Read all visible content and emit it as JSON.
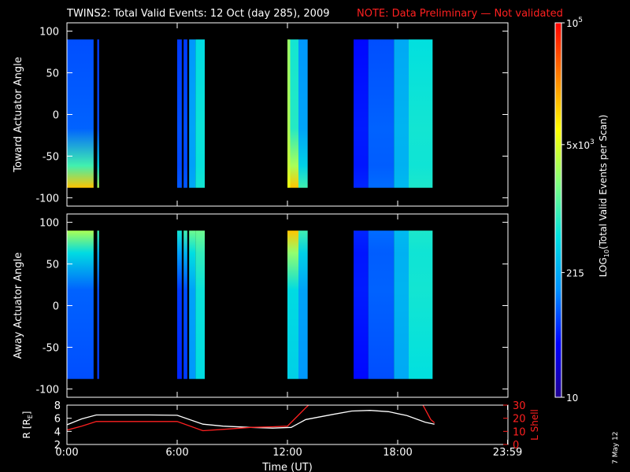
{
  "header": {
    "title": "TWINS2: Total Valid Events: 12 Oct (day 285), 2009",
    "note": "NOTE: Data Preliminary — Not validated"
  },
  "footer": {
    "date_stamp": "7 May 12"
  },
  "chart_data": [
    {
      "type": "heatmap",
      "ylabel": "Toward Actuator Angle",
      "ylim": [
        -110,
        110
      ],
      "yticks": [
        "100",
        "50",
        "0",
        "-50",
        "-100"
      ],
      "ytick_values": [
        100,
        50,
        0,
        -50,
        -100
      ],
      "data_yrange": [
        -88,
        90
      ],
      "xlim": [
        0,
        24
      ],
      "color_scale": "log",
      "value_range": [
        10,
        100000
      ],
      "segments": [
        {
          "t0": 0.0,
          "t1": 1.45,
          "low": 0.22,
          "high": 0.78,
          "bottom_edge": "high"
        },
        {
          "t0": 1.65,
          "t1": 1.75,
          "low": 0.2,
          "high": 0.62,
          "bottom_edge": "high"
        },
        {
          "t0": 6.0,
          "t1": 6.25,
          "low": 0.2,
          "high": 0.28,
          "bottom_edge": "low"
        },
        {
          "t0": 6.35,
          "t1": 6.55,
          "low": 0.2,
          "high": 0.28,
          "bottom_edge": "low"
        },
        {
          "t0": 6.65,
          "t1": 7.0,
          "low": 0.3,
          "high": 0.38,
          "bottom_edge": "low"
        },
        {
          "t0": 7.0,
          "t1": 7.5,
          "low": 0.42,
          "high": 0.48,
          "bottom_edge": "low"
        },
        {
          "t0": 12.0,
          "t1": 12.15,
          "low": 0.6,
          "high": 0.7,
          "bottom_edge": "high"
        },
        {
          "t0": 12.15,
          "t1": 12.6,
          "low": 0.45,
          "high": 0.78,
          "bottom_edge": "high"
        },
        {
          "t0": 12.6,
          "t1": 13.1,
          "low": 0.3,
          "high": 0.5,
          "bottom_edge": "high"
        },
        {
          "t0": 15.6,
          "t1": 16.4,
          "low": 0.15,
          "high": 0.25,
          "bottom_edge": "low"
        },
        {
          "t0": 16.4,
          "t1": 17.8,
          "low": 0.22,
          "high": 0.32,
          "bottom_edge": "low"
        },
        {
          "t0": 17.8,
          "t1": 18.6,
          "low": 0.33,
          "high": 0.42,
          "bottom_edge": "low"
        },
        {
          "t0": 18.6,
          "t1": 19.9,
          "low": 0.43,
          "high": 0.58,
          "bottom_edge": "low"
        }
      ]
    },
    {
      "type": "heatmap",
      "ylabel": "Away Actuator Angle",
      "ylim": [
        -110,
        110
      ],
      "yticks": [
        "100",
        "50",
        "0",
        "-50",
        "-100"
      ],
      "ytick_values": [
        100,
        50,
        0,
        -50,
        -100
      ],
      "data_yrange": [
        -88,
        90
      ],
      "xlim": [
        0,
        24
      ],
      "color_scale": "log",
      "value_range": [
        10,
        100000
      ],
      "segments": [
        {
          "t0": 0.0,
          "t1": 1.45,
          "low": 0.22,
          "high": 0.62,
          "top_edge": "high"
        },
        {
          "t0": 1.65,
          "t1": 1.75,
          "low": 0.2,
          "high": 0.5,
          "top_edge": "high"
        },
        {
          "t0": 6.0,
          "t1": 6.25,
          "low": 0.18,
          "high": 0.45,
          "top_edge": "high"
        },
        {
          "t0": 6.35,
          "t1": 6.55,
          "low": 0.2,
          "high": 0.5,
          "top_edge": "high"
        },
        {
          "t0": 6.65,
          "t1": 7.0,
          "low": 0.3,
          "high": 0.55,
          "top_edge": "high"
        },
        {
          "t0": 7.0,
          "t1": 7.5,
          "low": 0.42,
          "high": 0.55,
          "top_edge": "high"
        },
        {
          "t0": 12.0,
          "t1": 12.6,
          "low": 0.4,
          "high": 0.78,
          "top_edge": "high"
        },
        {
          "t0": 12.6,
          "t1": 13.1,
          "low": 0.3,
          "high": 0.5,
          "top_edge": "high"
        },
        {
          "t0": 15.6,
          "t1": 16.4,
          "low": 0.15,
          "high": 0.25,
          "top_edge": "low"
        },
        {
          "t0": 16.4,
          "t1": 17.8,
          "low": 0.22,
          "high": 0.32,
          "top_edge": "low"
        },
        {
          "t0": 17.8,
          "t1": 18.6,
          "low": 0.33,
          "high": 0.42,
          "top_edge": "low"
        },
        {
          "t0": 18.6,
          "t1": 19.9,
          "low": 0.43,
          "high": 0.58,
          "top_edge": "low"
        }
      ]
    },
    {
      "type": "line",
      "xlabel": "Time (UT)",
      "xlim": [
        0,
        24
      ],
      "xticks": [
        "0:00",
        "6:00",
        "12:00",
        "18:00",
        "23:59"
      ],
      "xtick_values": [
        0,
        6,
        12,
        18,
        23.98
      ],
      "left_axis": {
        "label_prefix": "R [R",
        "label_sub": "E",
        "label_suffix": "]",
        "ylim": [
          2,
          8
        ],
        "yticks": [
          "8",
          "6",
          "4",
          "2"
        ],
        "ytick_values": [
          8,
          6,
          4,
          2
        ]
      },
      "right_axis": {
        "label": "L Shell",
        "ylim": [
          0,
          30
        ],
        "yticks": [
          "30",
          "20",
          "10",
          "0"
        ],
        "ytick_values": [
          30,
          20,
          10,
          0
        ],
        "color": "#ff2020"
      },
      "series": [
        {
          "axis": "left",
          "color": "#ffffff",
          "x": [
            0,
            0.8,
            1.6,
            3,
            4.5,
            6.0,
            7.4,
            8.5,
            10,
            11.2,
            12.2,
            13,
            14.5,
            15.5,
            16.5,
            17.5,
            18.5,
            19.5,
            20
          ],
          "y": [
            5.0,
            5.9,
            6.5,
            6.5,
            6.5,
            6.45,
            5.1,
            4.8,
            4.6,
            4.5,
            4.6,
            5.8,
            6.6,
            7.1,
            7.2,
            7.0,
            6.4,
            5.4,
            5.1
          ]
        },
        {
          "axis": "right",
          "color": "#ff2020",
          "x": [
            0,
            0.8,
            1.6,
            3,
            4.5,
            6.0,
            7.4,
            8.5,
            10,
            11.2,
            12.0,
            12.5,
            13.0,
            13.3,
            19.3,
            19.8,
            20
          ],
          "y": [
            11,
            14,
            17.5,
            17.5,
            17.5,
            17.5,
            10.5,
            11.5,
            13,
            13.5,
            14,
            21,
            28,
            32,
            32,
            19,
            16.5
          ]
        }
      ]
    }
  ],
  "colorbar": {
    "label_prefix": "LOG",
    "label_sub": "10",
    "label_suffix": "(Total Valid  Events per Scan)",
    "scale": "log",
    "range": [
      10,
      100000
    ],
    "ticks": [
      {
        "value": 100000,
        "base": "10",
        "sup": "5"
      },
      {
        "value": 5000,
        "base": "5x10",
        "sup": "3"
      },
      {
        "value": 215,
        "base": "215",
        "sup": ""
      },
      {
        "value": 10,
        "base": "10",
        "sup": ""
      }
    ],
    "stops": [
      "#200090",
      "#0000ff",
      "#0090ff",
      "#00e0e0",
      "#80ff80",
      "#ffff00",
      "#ff8000",
      "#ff0000"
    ]
  }
}
